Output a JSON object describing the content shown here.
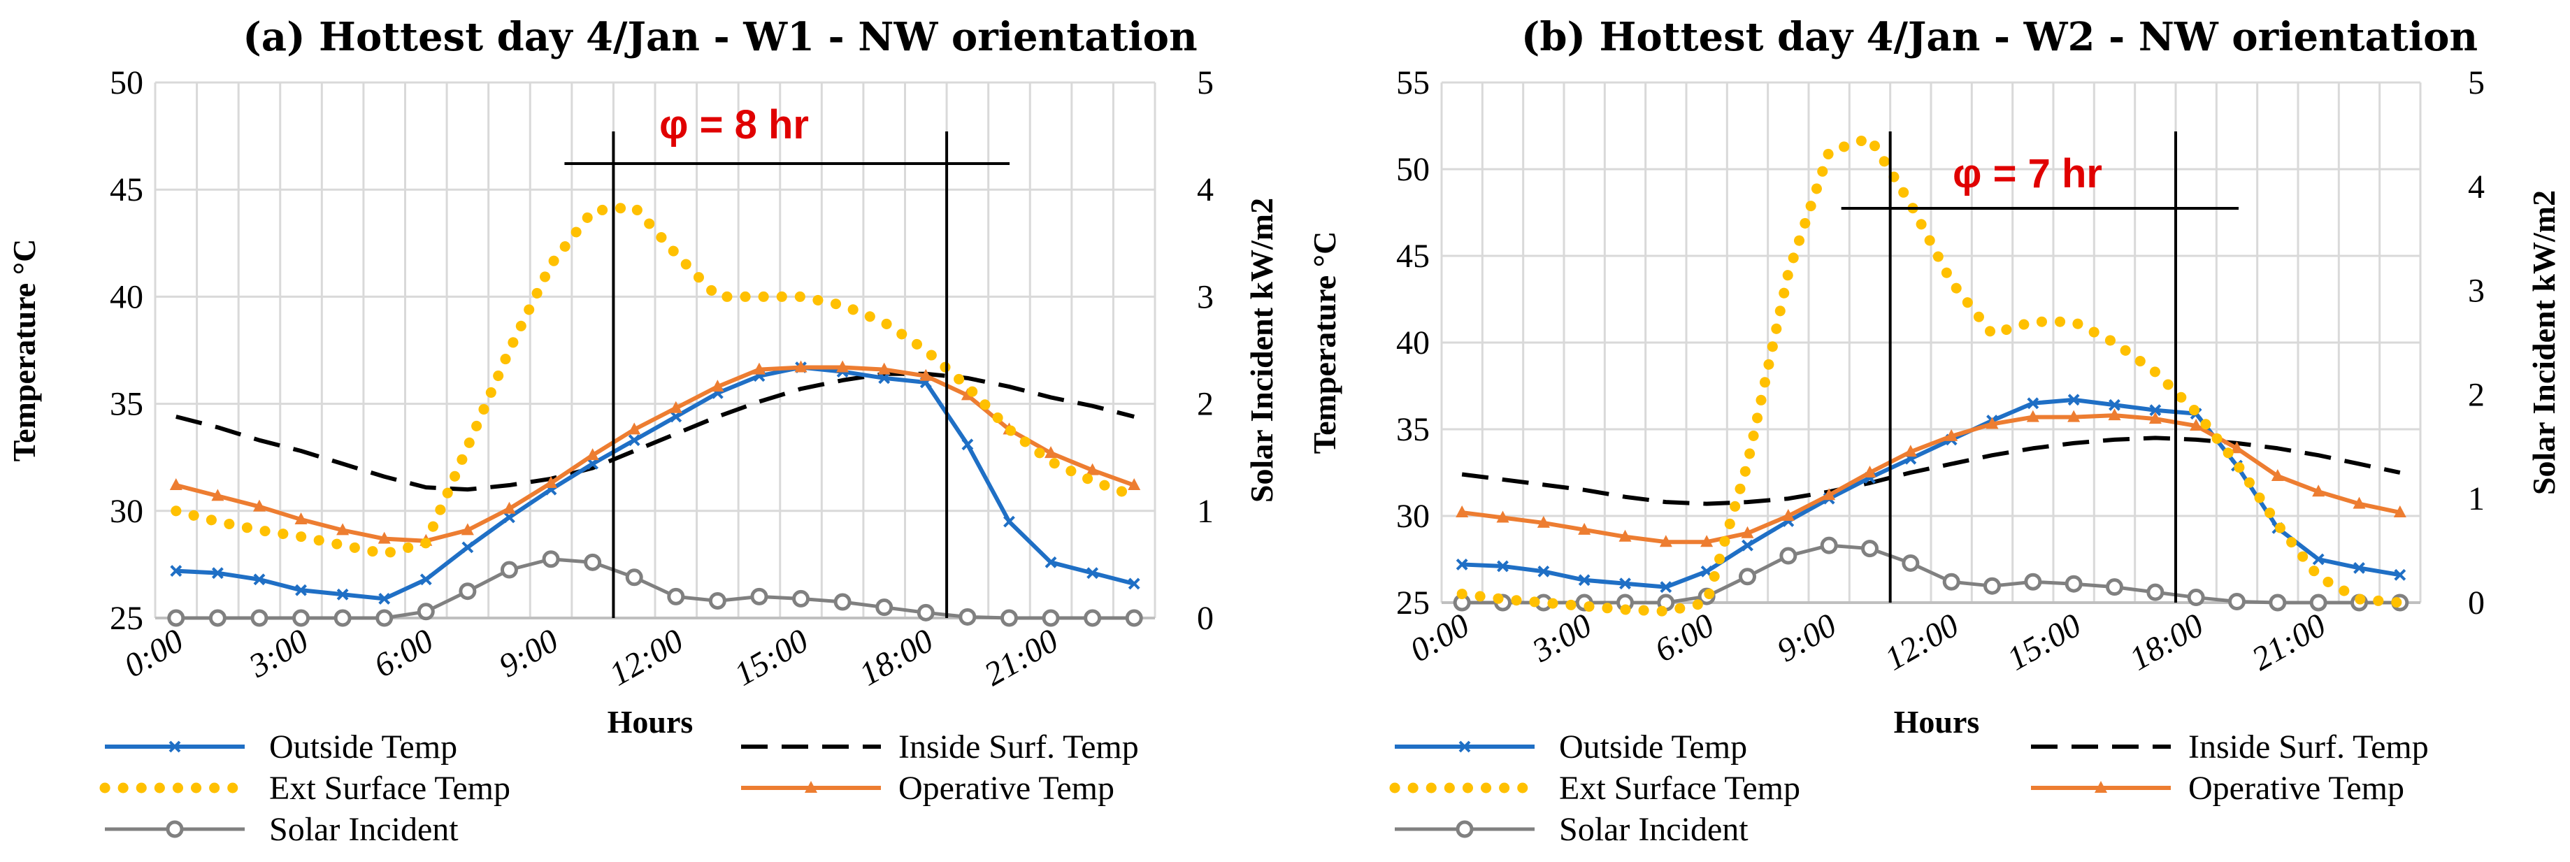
{
  "chart_data": [
    {
      "type": "line",
      "title": "(a) Hottest day 4/Jan - W1 - NW orientation",
      "xlabel": "Hours",
      "ylabel": "Temperature °C",
      "y2label": "Solar Incident kW/m2",
      "ylim": [
        25,
        50
      ],
      "yticks": [
        "25",
        "30",
        "35",
        "40",
        "45",
        "50"
      ],
      "y2lim": [
        0,
        5
      ],
      "y2ticks": [
        "0",
        "1",
        "2",
        "3",
        "4",
        "5"
      ],
      "x_tick_labels": [
        "0:00",
        "3:00",
        "6:00",
        "9:00",
        "12:00",
        "15:00",
        "18:00",
        "21:00"
      ],
      "grid": true,
      "annotation": {
        "label": "φ = 8 hr",
        "arrow_start_hour": 10.5,
        "arrow_end_hour": 18.5
      },
      "series": [
        {
          "name": "Ext Surface Temp",
          "key": "ext",
          "axis": "left",
          "color": "#ffc000",
          "values": [
            30,
            29.5,
            29.1,
            28.8,
            28.4,
            28,
            28.5,
            33,
            37.5,
            41.5,
            44,
            44.2,
            42,
            40,
            40,
            40,
            39.6,
            38.8,
            37.5,
            35.8,
            33.8,
            32.3,
            31.4,
            30.7
          ]
        },
        {
          "name": "Inside Surf. Temp",
          "key": "inside",
          "axis": "left",
          "color": "#000000",
          "values": [
            34.4,
            33.9,
            33.3,
            32.8,
            32.2,
            31.6,
            31.1,
            31,
            31.2,
            31.5,
            32,
            32.8,
            33.6,
            34.4,
            35.1,
            35.7,
            36.1,
            36.4,
            36.4,
            36.2,
            35.8,
            35.3,
            34.9,
            34.4
          ]
        },
        {
          "name": "Outside Temp",
          "key": "outside",
          "axis": "left",
          "color": "#1f6fc5",
          "values": [
            27.2,
            27.1,
            26.8,
            26.3,
            26.1,
            25.9,
            26.8,
            28.3,
            29.7,
            31,
            32.2,
            33.3,
            34.4,
            35.5,
            36.3,
            36.7,
            36.5,
            36.2,
            36,
            33.1,
            29.5,
            27.6,
            27.1,
            26.6
          ]
        },
        {
          "name": "Operative Temp",
          "key": "operative",
          "axis": "left",
          "color": "#ed7d31",
          "values": [
            31.2,
            30.7,
            30.2,
            29.6,
            29.1,
            28.7,
            28.6,
            29.1,
            30.1,
            31.3,
            32.6,
            33.8,
            34.8,
            35.8,
            36.6,
            36.7,
            36.7,
            36.6,
            36.3,
            35.4,
            33.8,
            32.7,
            31.9,
            31.2
          ]
        },
        {
          "name": "Solar Incident",
          "key": "solar",
          "axis": "right",
          "color": "#808080",
          "values": [
            0,
            0,
            0,
            0,
            0,
            0,
            0.06,
            0.25,
            0.45,
            0.55,
            0.52,
            0.38,
            0.2,
            0.16,
            0.2,
            0.18,
            0.15,
            0.1,
            0.05,
            0.01,
            0,
            0,
            0,
            0
          ]
        }
      ]
    },
    {
      "type": "line",
      "title": "(b) Hottest day 4/Jan - W2 - NW orientation",
      "xlabel": "Hours",
      "ylabel": "Temperature °C",
      "y2label": "Solar Incident kW/m2",
      "ylim": [
        25,
        55
      ],
      "yticks": [
        "25",
        "30",
        "35",
        "40",
        "45",
        "50",
        "55"
      ],
      "y2lim": [
        0,
        5
      ],
      "y2ticks": [
        "0",
        "1",
        "2",
        "3",
        "4",
        "5"
      ],
      "x_tick_labels": [
        "0:00",
        "3:00",
        "6:00",
        "9:00",
        "12:00",
        "15:00",
        "18:00",
        "21:00"
      ],
      "grid": true,
      "annotation": {
        "label": "φ = 7 hr",
        "arrow_start_hour": 10.5,
        "arrow_end_hour": 17.5
      },
      "series": [
        {
          "name": "Ext Surface Temp",
          "key": "ext",
          "axis": "left",
          "color": "#ffc000",
          "values": [
            25.5,
            25.2,
            25,
            24.8,
            24.6,
            24.5,
            25,
            33,
            44,
            51,
            51.8,
            48,
            43.5,
            40.5,
            41.2,
            41.2,
            40,
            38.3,
            36,
            33,
            29.5,
            26.5,
            25.2,
            25
          ]
        },
        {
          "name": "Inside Surf. Temp",
          "key": "inside",
          "axis": "left",
          "color": "#000000",
          "values": [
            32.4,
            32.1,
            31.8,
            31.5,
            31.1,
            30.8,
            30.7,
            30.8,
            31,
            31.4,
            31.9,
            32.5,
            33,
            33.5,
            33.9,
            34.2,
            34.4,
            34.5,
            34.4,
            34.2,
            33.9,
            33.5,
            33,
            32.5
          ]
        },
        {
          "name": "Outside Temp",
          "key": "outside",
          "axis": "left",
          "color": "#1f6fc5",
          "values": [
            27.2,
            27.1,
            26.8,
            26.3,
            26.1,
            25.9,
            26.8,
            28.3,
            29.7,
            31,
            32.2,
            33.3,
            34.4,
            35.5,
            36.5,
            36.7,
            36.4,
            36.1,
            35.9,
            32.9,
            29.3,
            27.5,
            27,
            26.6
          ]
        },
        {
          "name": "Operative Temp",
          "key": "operative",
          "axis": "left",
          "color": "#ed7d31",
          "values": [
            30.2,
            29.9,
            29.6,
            29.2,
            28.8,
            28.5,
            28.5,
            29,
            30,
            31.2,
            32.5,
            33.7,
            34.6,
            35.3,
            35.7,
            35.7,
            35.8,
            35.6,
            35.2,
            33.9,
            32.3,
            31.4,
            30.7,
            30.2
          ]
        },
        {
          "name": "Solar Incident",
          "key": "solar",
          "axis": "right",
          "color": "#808080",
          "values": [
            0,
            0,
            0,
            0,
            0,
            0,
            0.06,
            0.25,
            0.45,
            0.55,
            0.52,
            0.38,
            0.2,
            0.16,
            0.2,
            0.18,
            0.15,
            0.1,
            0.05,
            0.01,
            0,
            0,
            0,
            0
          ]
        }
      ]
    }
  ],
  "legend_order": [
    "outside",
    "inside",
    "ext",
    "operative",
    "solar"
  ]
}
